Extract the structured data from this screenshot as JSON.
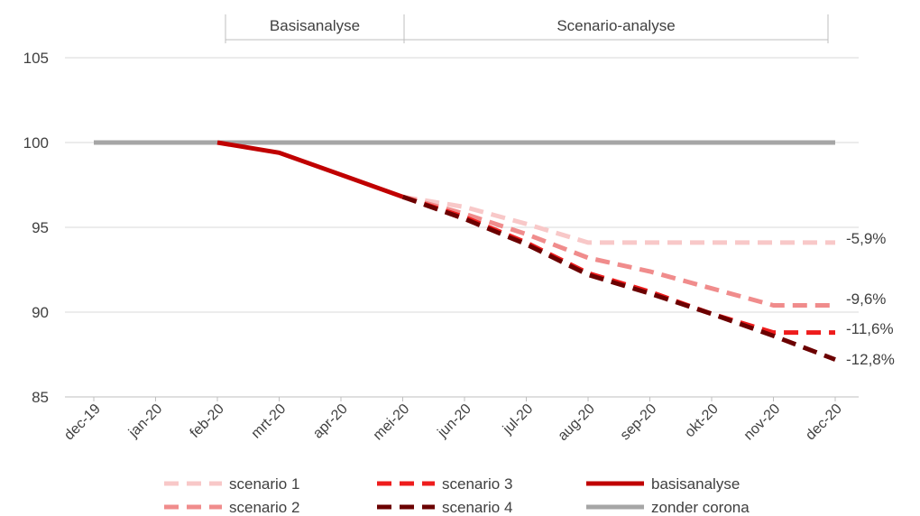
{
  "chart_data": {
    "type": "line",
    "categories": [
      "dec-19",
      "jan-20",
      "feb-20",
      "mrt-20",
      "apr-20",
      "mei-20",
      "jun-20",
      "jul-20",
      "aug-20",
      "sep-20",
      "okt-20",
      "nov-20",
      "dec-20"
    ],
    "ylim": [
      85,
      105
    ],
    "yticks": [
      85,
      90,
      95,
      100,
      105
    ],
    "grid": true,
    "legend_position": "bottom",
    "periods": [
      {
        "label": "Basisanalyse",
        "from": "feb-20",
        "to": "mei-20"
      },
      {
        "label": "Scenario-analyse",
        "from": "mei-20",
        "to": "dec-20"
      }
    ],
    "series": [
      {
        "name": "scenario 1",
        "style": "dashed",
        "color": "#f8c8c8",
        "values": [
          null,
          null,
          null,
          null,
          null,
          96.8,
          96.2,
          95.2,
          94.1,
          94.1,
          94.1,
          94.1,
          94.1
        ]
      },
      {
        "name": "scenario 2",
        "style": "dashed",
        "color": "#f08c8c",
        "values": [
          null,
          null,
          null,
          null,
          null,
          96.8,
          95.8,
          94.6,
          93.2,
          92.4,
          91.4,
          90.4,
          90.4
        ]
      },
      {
        "name": "scenario 3",
        "style": "dashed",
        "color": "#ee1c1c",
        "values": [
          null,
          null,
          null,
          null,
          null,
          96.8,
          95.6,
          94.1,
          92.3,
          91.2,
          89.9,
          88.8,
          88.8
        ]
      },
      {
        "name": "scenario 4",
        "style": "dashed",
        "color": "#6b0000",
        "values": [
          null,
          null,
          null,
          null,
          null,
          96.8,
          95.5,
          94.0,
          92.2,
          91.1,
          89.9,
          88.6,
          87.2
        ]
      },
      {
        "name": "basisanalyse",
        "style": "solid",
        "color": "#c00000",
        "values": [
          null,
          null,
          100.0,
          99.4,
          98.1,
          96.8,
          null,
          null,
          null,
          null,
          null,
          null,
          null
        ]
      },
      {
        "name": "zonder corona",
        "style": "solid",
        "color": "#a6a6a6",
        "values": [
          100,
          100,
          100,
          100,
          100,
          100,
          100,
          100,
          100,
          100,
          100,
          100,
          100
        ]
      }
    ],
    "annotations": [
      {
        "text": "-5,9%",
        "y": 94.1
      },
      {
        "text": "-9,6%",
        "y": 90.4
      },
      {
        "text": "-11,6%",
        "y": 88.8
      },
      {
        "text": "-12,8%",
        "y": 87.2
      }
    ]
  }
}
